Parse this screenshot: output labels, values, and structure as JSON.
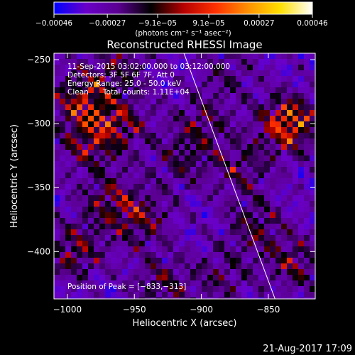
{
  "chart_data": {
    "type": "heatmap",
    "title": "Reconstructed RHESSI Image",
    "xlabel": "Heliocentric X (arcsec)",
    "ylabel": "Heliocentric Y (arcsec)",
    "xlim": [
      -1010,
      -815
    ],
    "ylim": [
      -437,
      -245
    ],
    "x_ticks": [
      -1000,
      -950,
      -900,
      -850
    ],
    "x_tick_labels": [
      "−1000",
      "−950",
      "−900",
      "−850"
    ],
    "y_ticks": [
      -250,
      -300,
      -350,
      -400
    ],
    "y_tick_labels": [
      "−250",
      "−300",
      "−350",
      "−400"
    ],
    "colorbar": {
      "range": [
        -0.00046,
        0.00046
      ],
      "ticks": [
        -0.00046,
        -0.00027,
        -9.1e-05,
        9.1e-05,
        0.00027,
        0.00046
      ],
      "tick_labels": [
        "−0.00046",
        "−0.00027",
        "−9.1e−05",
        "9.1e−05",
        "0.00027",
        "0.00046"
      ],
      "unit_label": "(photons cm⁻² s⁻¹ asec⁻²)",
      "colors": [
        "#0000ff",
        "#6a00c8",
        "#5a0090",
        "#000000",
        "#b40000",
        "#ff3000",
        "#ff9000",
        "#ffe000",
        "#ffffff"
      ]
    },
    "info_lines": [
      "11-Sep-2015 03:02:00.000 to 03:12:00.000",
      "Detectors: 3F 5F 6F 7F, Att 0",
      "Energy Range: 25.0 - 50.0 keV",
      "Clean      Total counts: 1.11E+04"
    ],
    "peak_label": "Position of Peak = [−833,−313]",
    "peak_position": [
      -833,
      -313
    ],
    "limb_line": [
      [
        -913,
        -245
      ],
      [
        -845,
        -437
      ]
    ],
    "hot_regions": [
      {
        "x": -835,
        "y": -300,
        "strength": 1.0
      },
      {
        "x": -990,
        "y": -280,
        "strength": 0.7
      },
      {
        "x": -960,
        "y": -300,
        "strength": 0.55
      },
      {
        "x": -985,
        "y": -315,
        "strength": 0.55
      },
      {
        "x": -900,
        "y": -300,
        "strength": 0.45
      },
      {
        "x": -915,
        "y": -330,
        "strength": 0.4
      },
      {
        "x": -870,
        "y": -335,
        "strength": 0.45
      },
      {
        "x": -970,
        "y": -360,
        "strength": 0.5
      },
      {
        "x": -945,
        "y": -375,
        "strength": 0.55
      },
      {
        "x": -995,
        "y": -400,
        "strength": 0.6
      },
      {
        "x": -860,
        "y": -380,
        "strength": 0.5
      },
      {
        "x": -830,
        "y": -410,
        "strength": 0.55
      },
      {
        "x": -930,
        "y": -425,
        "strength": 0.5
      },
      {
        "x": -885,
        "y": -420,
        "strength": 0.4
      },
      {
        "x": -960,
        "y": -255,
        "strength": 0.45
      },
      {
        "x": -880,
        "y": -260,
        "strength": 0.35
      }
    ]
  },
  "timestamp": "21-Aug-2017 17:09"
}
